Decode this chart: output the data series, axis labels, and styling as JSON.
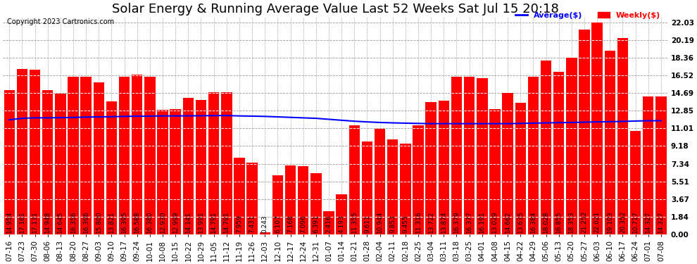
{
  "title": "Solar Energy & Running Average Value Last 52 Weeks Sat Jul 15 20:18",
  "copyright": "Copyright 2023 Cartronics.com",
  "categories": [
    "07-16",
    "07-23",
    "07-30",
    "08-06",
    "08-13",
    "08-20",
    "08-27",
    "09-03",
    "09-10",
    "09-17",
    "09-24",
    "10-01",
    "10-08",
    "10-15",
    "10-22",
    "10-29",
    "11-05",
    "11-12",
    "11-19",
    "11-26",
    "12-03",
    "12-10",
    "12-17",
    "12-24",
    "12-31",
    "01-07",
    "01-14",
    "01-21",
    "01-28",
    "02-04",
    "02-11",
    "02-18",
    "02-25",
    "03-04",
    "03-11",
    "03-18",
    "03-25",
    "04-01",
    "04-08",
    "04-15",
    "04-22",
    "04-29",
    "05-06",
    "05-13",
    "05-20",
    "05-27",
    "06-03",
    "06-10",
    "06-17",
    "06-24",
    "07-01",
    "07-08"
  ],
  "values": [
    14.954,
    17.161,
    17.131,
    14.948,
    14.645,
    16.356,
    16.396,
    15.8,
    13.821,
    16.395,
    16.588,
    16.38,
    12.93,
    12.999,
    14.141,
    13.991,
    14.791,
    14.791,
    7.959,
    7.431,
    0.243,
    6.107,
    7.168,
    7.096,
    6.391,
    2.416,
    4.193,
    11.355,
    9.611,
    10.944,
    9.853,
    9.455,
    11.316,
    13.722,
    13.874,
    16.379,
    16.377,
    16.191,
    13.029,
    14.662,
    13.635,
    16.384,
    18.028,
    16.855,
    18.353,
    21.252,
    22.021,
    19.103,
    20.352,
    10.717,
    14.327,
    14.327
  ],
  "avg_values": [
    11.9,
    12.05,
    12.1,
    12.1,
    12.12,
    12.14,
    12.18,
    12.2,
    12.22,
    12.25,
    12.27,
    12.28,
    12.3,
    12.3,
    12.31,
    12.32,
    12.33,
    12.34,
    12.3,
    12.28,
    12.25,
    12.2,
    12.15,
    12.1,
    12.05,
    11.95,
    11.85,
    11.75,
    11.68,
    11.62,
    11.58,
    11.55,
    11.52,
    11.5,
    11.5,
    11.5,
    11.5,
    11.5,
    11.5,
    11.5,
    11.52,
    11.55,
    11.58,
    11.6,
    11.62,
    11.65,
    11.68,
    11.7,
    11.73,
    11.77,
    11.8,
    11.8
  ],
  "bar_color": "#ff0000",
  "avg_line_color": "#0000ff",
  "ytick_values": [
    0.0,
    1.84,
    3.67,
    5.51,
    7.34,
    9.18,
    11.01,
    12.85,
    14.69,
    16.52,
    18.36,
    20.19,
    22.03
  ],
  "ymax": 22.5,
  "ymin": 0.0,
  "bg_color": "#ffffff",
  "plot_bg_color": "#ffffff",
  "grid_color": "#999999",
  "title_fontsize": 13,
  "label_fontsize": 6.5,
  "tick_fontsize": 7.5,
  "avg_label": "Average($)",
  "weekly_label": "Weekly($)"
}
